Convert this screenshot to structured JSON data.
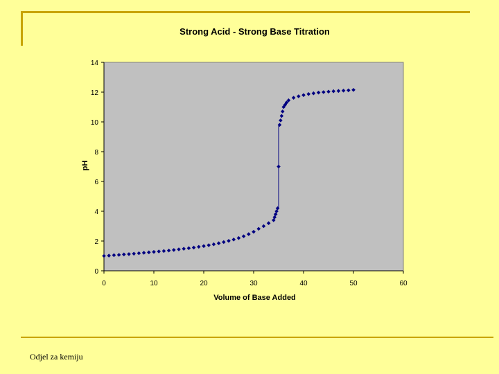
{
  "footer": {
    "text": "Odjel za kemiju"
  },
  "colors": {
    "background": "#FFFF99",
    "accent": "#C8A400",
    "plot_area": "#C0C0C0",
    "marker": "#000080"
  },
  "chart_data": {
    "type": "scatter",
    "title": "Strong Acid - Strong Base Titration",
    "xlabel": "Volume of Base Added",
    "ylabel": "pH",
    "xlim": [
      0,
      60
    ],
    "ylim": [
      0,
      14
    ],
    "xticks": [
      0,
      10,
      20,
      30,
      40,
      50,
      60
    ],
    "yticks": [
      0,
      2,
      4,
      6,
      8,
      10,
      12,
      14
    ],
    "series": [
      {
        "name": "pH",
        "x": [
          0,
          1,
          2,
          3,
          4,
          5,
          6,
          7,
          8,
          9,
          10,
          11,
          12,
          13,
          14,
          15,
          16,
          17,
          18,
          19,
          20,
          21,
          22,
          23,
          24,
          25,
          26,
          27,
          28,
          29,
          30,
          31,
          32,
          33,
          34,
          34.2,
          34.4,
          34.6,
          34.8,
          35,
          35.2,
          35.4,
          35.6,
          35.8,
          36,
          36.3,
          36.6,
          37,
          38,
          39,
          40,
          41,
          42,
          43,
          44,
          45,
          46,
          47,
          48,
          49,
          50
        ],
        "y": [
          1.0,
          1.02,
          1.05,
          1.07,
          1.1,
          1.12,
          1.15,
          1.18,
          1.21,
          1.24,
          1.27,
          1.3,
          1.33,
          1.36,
          1.4,
          1.44,
          1.48,
          1.52,
          1.56,
          1.61,
          1.66,
          1.72,
          1.78,
          1.85,
          1.93,
          2.01,
          2.1,
          2.2,
          2.32,
          2.46,
          2.62,
          2.82,
          3.0,
          3.2,
          3.4,
          3.6,
          3.8,
          4.0,
          4.2,
          7.0,
          9.8,
          10.1,
          10.4,
          10.7,
          11.0,
          11.15,
          11.3,
          11.45,
          11.62,
          11.72,
          11.8,
          11.87,
          11.92,
          11.97,
          12.0,
          12.03,
          12.06,
          12.08,
          12.1,
          12.12,
          12.15
        ]
      }
    ]
  }
}
